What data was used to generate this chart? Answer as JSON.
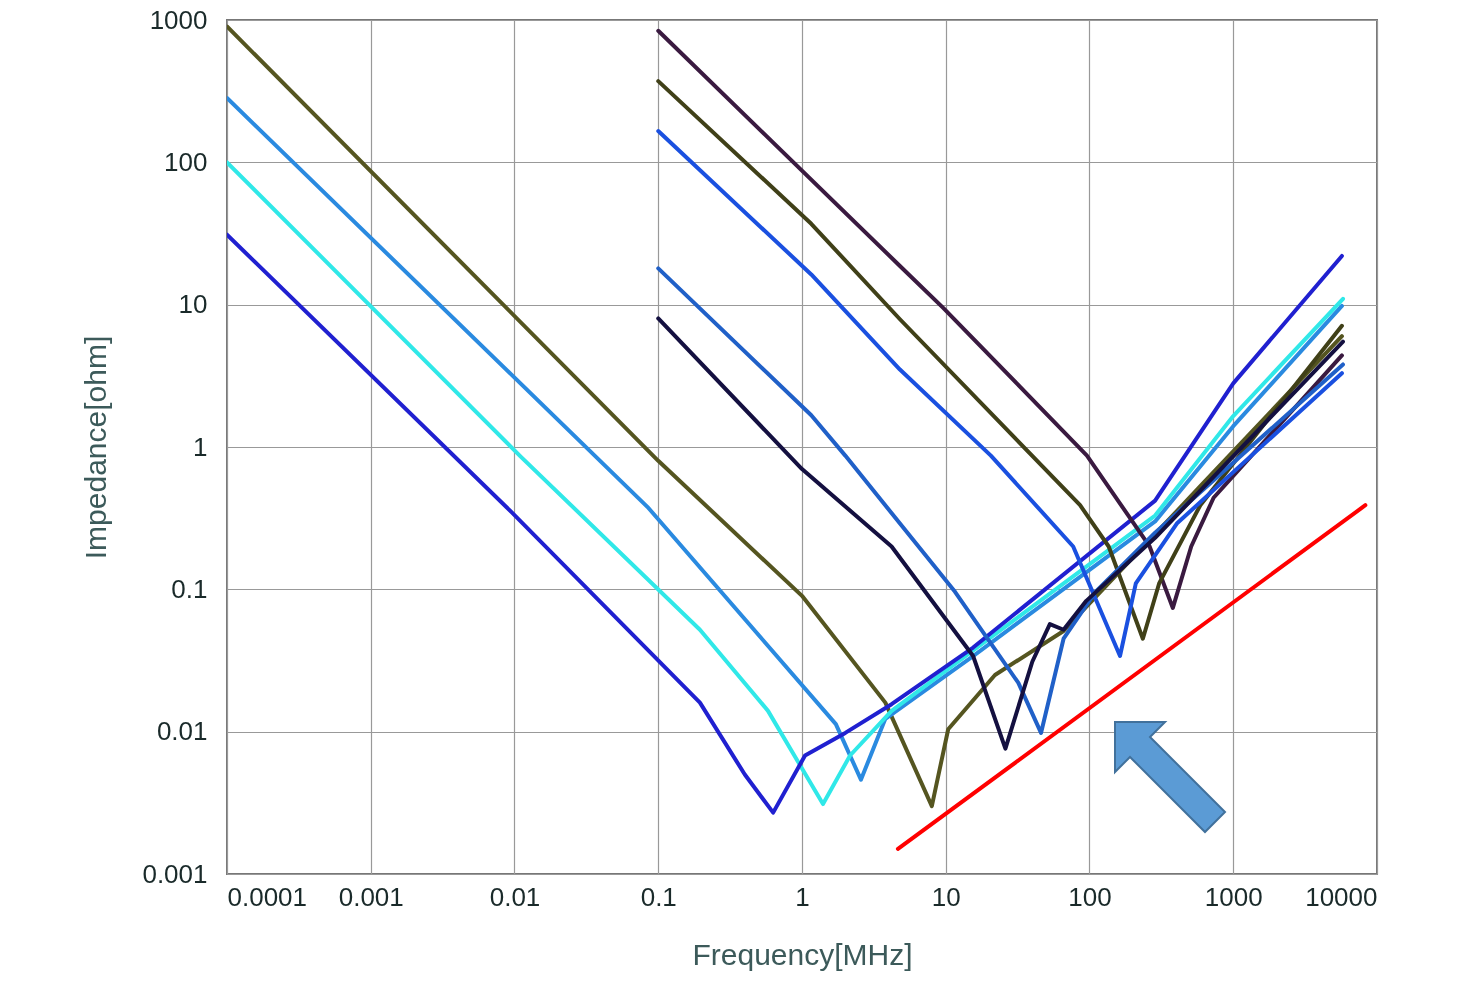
{
  "chart_data": {
    "type": "line",
    "xlabel": "Frequency[MHz]",
    "ylabel": "Impedance[ohm]",
    "log": "xy",
    "grid": true,
    "xlim": [
      0.0001,
      10000
    ],
    "ylim": [
      0.001,
      1000
    ],
    "xticks": [
      0.0001,
      0.001,
      0.01,
      0.1,
      1,
      10,
      100,
      1000,
      10000
    ],
    "yticks": [
      0.001,
      0.01,
      0.1,
      1,
      10,
      100,
      1000
    ],
    "series": [
      {
        "color": "#555520",
        "x": [
          0.0001,
          0.1,
          1.0,
          3.8,
          8,
          10.4,
          22,
          66,
          590,
          5700
        ],
        "values": [
          900,
          0.8,
          0.09,
          0.016,
          0.003,
          0.0104,
          0.025,
          0.051,
          0.53,
          6
        ]
      },
      {
        "color": "#2a8ae0",
        "x": [
          0.0001,
          0.084,
          1.72,
          2.57,
          3.8,
          15.5,
          286,
          1000,
          5700
        ],
        "values": [
          283,
          0.38,
          0.0113,
          0.0046,
          0.0123,
          0.034,
          0.3,
          1.4,
          9.8
        ]
      },
      {
        "color": "#30e8e8",
        "x": [
          0.0001,
          0.011,
          0.195,
          0.58,
          1.4,
          2.16,
          4.2,
          286,
          1000,
          5800
        ],
        "values": [
          100,
          0.86,
          0.052,
          0.014,
          0.0031,
          0.0068,
          0.014,
          0.33,
          1.65,
          11
        ]
      },
      {
        "color": "#2020d0",
        "x": [
          0.0001,
          0.0095,
          0.195,
          0.4,
          0.63,
          1.05,
          2,
          4.2,
          15.5,
          286,
          1000,
          5700
        ],
        "values": [
          31,
          0.35,
          0.016,
          0.005,
          0.0027,
          0.0068,
          0.0098,
          0.0156,
          0.039,
          0.42,
          2.8,
          22
        ]
      },
      {
        "color": "#3a1a40",
        "x": [
          0.1,
          4.8,
          9.6,
          96,
          262,
          380,
          510,
          730,
          5700
        ],
        "values": [
          840,
          18.7,
          9.5,
          0.87,
          0.2,
          0.074,
          0.2,
          0.44,
          4.4
        ]
      },
      {
        "color": "#404018",
        "x": [
          0.1,
          1.16,
          4.8,
          86,
          136,
          235,
          305,
          590,
          5700
        ],
        "values": [
          372,
          37,
          7.9,
          0.39,
          0.2,
          0.045,
          0.11,
          0.39,
          7.1
        ]
      },
      {
        "color": "#1a50e0",
        "x": [
          0.1,
          1.16,
          4.8,
          20.6,
          77,
          163,
          210,
          405,
          5700
        ],
        "values": [
          166,
          16.3,
          3.5,
          0.87,
          0.2,
          0.034,
          0.11,
          0.29,
          3.3
        ]
      },
      {
        "color": "#2060c8",
        "x": [
          0.1,
          1.16,
          2,
          11.6,
          32,
          46,
          66,
          110,
          286,
          5800
        ],
        "values": [
          18,
          1.67,
          0.87,
          0.096,
          0.022,
          0.0098,
          0.045,
          0.096,
          0.25,
          3.8
        ]
      },
      {
        "color": "#141040",
        "x": [
          0.1,
          1,
          4.2,
          15.5,
          26,
          40,
          53,
          66,
          95,
          286,
          5800
        ],
        "values": [
          8,
          0.7,
          0.2,
          0.034,
          0.0076,
          0.031,
          0.057,
          0.052,
          0.083,
          0.23,
          5.5
        ]
      },
      {
        "color": "#ff0000",
        "x": [
          4.65,
          8300
        ],
        "values": [
          0.0015,
          0.39
        ]
      }
    ]
  }
}
